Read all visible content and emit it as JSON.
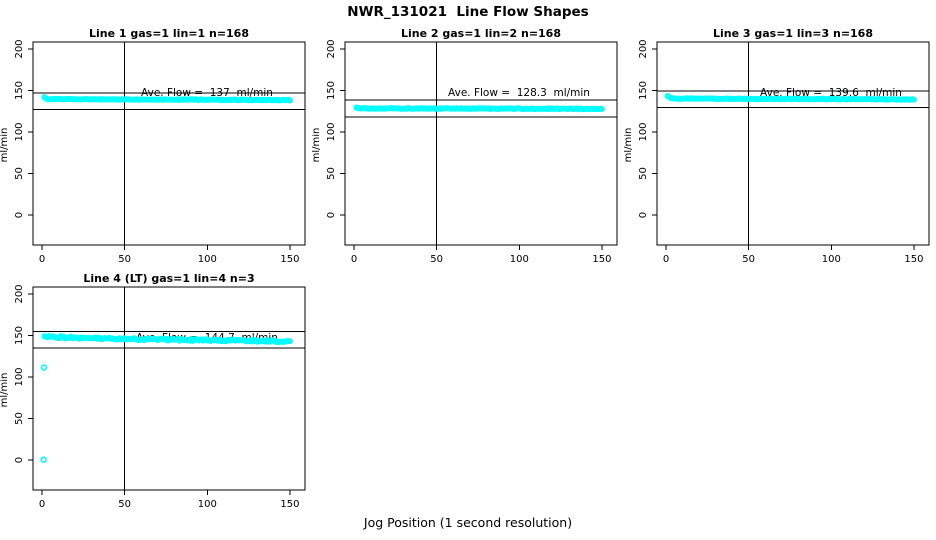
{
  "page": {
    "title": "NWR_131021  Line Flow Shapes",
    "xlabel": "Jog Position (1 second resolution)",
    "background": "#ffffff",
    "text_color": "#000000",
    "point_color": "#00ffff"
  },
  "chart_data": [
    {
      "type": "scatter",
      "title": "Line 1 gas=1 lin=1 n=168",
      "n": 168,
      "ave_flow": 137,
      "annotation": "Ave. Flow =  137  ml/min",
      "ylabel": "ml/min",
      "x_ticks": [
        0,
        50,
        100,
        150
      ],
      "y_ticks": [
        0,
        50,
        100,
        150,
        200
      ],
      "xlim": [
        -5,
        158
      ],
      "ylim": [
        -36,
        208
      ],
      "grid": false,
      "vline_x": 50,
      "hlines": [
        147,
        127
      ],
      "point_color": "#00ffff",
      "spread": 0.45,
      "band": [
        [
          1.5,
          142.5
        ],
        [
          3,
          139.8
        ],
        [
          20,
          139.4
        ],
        [
          60,
          139.2
        ],
        [
          100,
          139.0
        ],
        [
          150,
          138.4
        ]
      ],
      "outliers": []
    },
    {
      "type": "scatter",
      "title": "Line 2 gas=1 lin=2 n=168",
      "n": 168,
      "ave_flow": 128.3,
      "annotation": "Ave. Flow =  128.3  ml/min",
      "ylabel": "ml/min",
      "x_ticks": [
        0,
        50,
        100,
        150
      ],
      "y_ticks": [
        0,
        50,
        100,
        150,
        200
      ],
      "xlim": [
        -5,
        158
      ],
      "ylim": [
        -36,
        208
      ],
      "grid": false,
      "vline_x": 50,
      "hlines": [
        138.3,
        118.3
      ],
      "point_color": "#00ffff",
      "spread": 0.45,
      "band": [
        [
          1.5,
          129.2
        ],
        [
          4,
          128.5
        ],
        [
          30,
          128.3
        ],
        [
          80,
          128.2
        ],
        [
          150,
          127.8
        ]
      ],
      "outliers": []
    },
    {
      "type": "scatter",
      "title": "Line 3 gas=1 lin=3 n=168",
      "n": 168,
      "ave_flow": 139.6,
      "annotation": "Ave. Flow =  139.6  ml/min",
      "ylabel": "ml/min",
      "x_ticks": [
        0,
        50,
        100,
        150
      ],
      "y_ticks": [
        0,
        50,
        100,
        150,
        200
      ],
      "xlim": [
        -5,
        158
      ],
      "ylim": [
        -36,
        208
      ],
      "grid": false,
      "vline_x": 50,
      "hlines": [
        149.6,
        129.6
      ],
      "point_color": "#00ffff",
      "spread": 0.45,
      "band": [
        [
          1,
          143.8
        ],
        [
          2.5,
          141.3
        ],
        [
          6,
          140.4
        ],
        [
          30,
          140.0
        ],
        [
          80,
          139.8
        ],
        [
          150,
          139.2
        ]
      ],
      "outliers": []
    },
    {
      "type": "scatter",
      "title": "Line 4 (LT) gas=1 lin=4 n=3",
      "n": 3,
      "ave_flow": 144.7,
      "annotation": "Ave. Flow =  144.7  ml/min",
      "ylabel": "ml/min",
      "x_ticks": [
        0,
        50,
        100,
        150
      ],
      "y_ticks": [
        0,
        50,
        100,
        150,
        200
      ],
      "xlim": [
        -5,
        158
      ],
      "ylim": [
        -36,
        208
      ],
      "grid": false,
      "vline_x": 50,
      "hlines": [
        154.7,
        134.7
      ],
      "point_color": "#00ffff",
      "spread": 1.2,
      "band": [
        [
          1.5,
          148.8
        ],
        [
          8,
          148.2
        ],
        [
          20,
          147.2
        ],
        [
          40,
          146.2
        ],
        [
          70,
          145.2
        ],
        [
          100,
          144.4
        ],
        [
          130,
          143.6
        ],
        [
          150,
          143.0
        ]
      ],
      "outliers": [
        [
          1,
          0.5
        ],
        [
          1.3,
          111.5
        ]
      ]
    }
  ]
}
